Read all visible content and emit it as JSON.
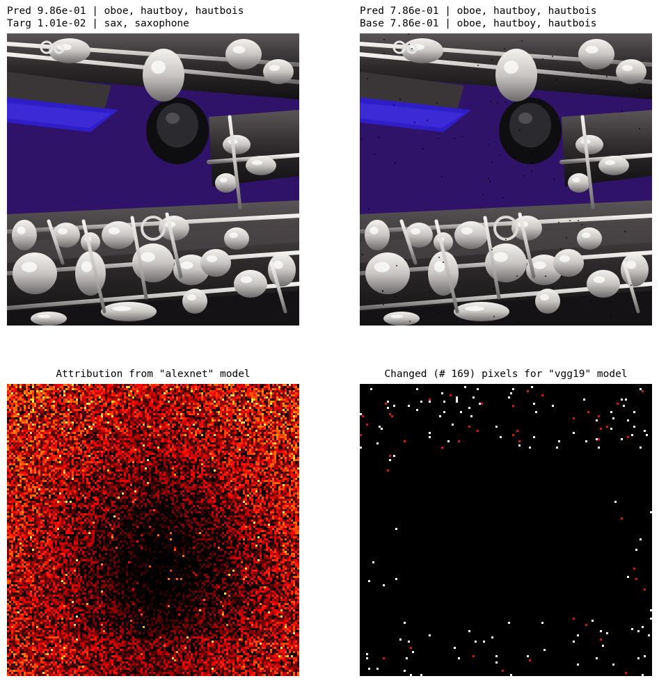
{
  "panels": {
    "original": {
      "line1": "Pred 9.86e-01 | oboe, hautboy, hautbois",
      "line2": "Targ 1.01e-02 | sax, saxophone"
    },
    "adversarial": {
      "line1": "Pred 7.86e-01 | oboe, hautboy, hautbois",
      "line2": "Base 7.86e-01 | oboe, hautboy, hautbois"
    },
    "attribution": {
      "title": "Attribution from \"alexnet\" model"
    },
    "changed": {
      "title": "Changed (# 169) pixels for \"vgg19\" model"
    }
  },
  "colors": {
    "case_purple": "#3a1780",
    "body_dark": "#2e2a2c",
    "silver": "#c9c6c4",
    "label_blue": "#2f1ec8",
    "heatmap_low": "#000000",
    "heatmap_mid": "#b01800",
    "heatmap_high": "#ffe46a"
  }
}
